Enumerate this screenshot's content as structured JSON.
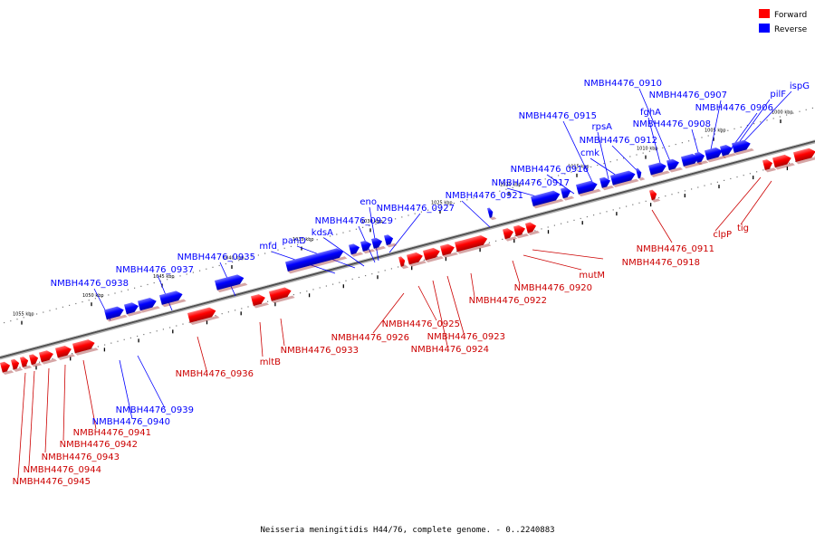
{
  "legend": {
    "forward_label": "Forward",
    "reverse_label": "Reverse",
    "forward_color": "#ff0000",
    "reverse_color": "#0000ff"
  },
  "caption": "Neisseria meningitidis H44/76, complete genome. - 0..2240883",
  "axis": {
    "unit": "kbp",
    "tick_labels": [
      "1000 kbp",
      "1005 kbp",
      "1010 kbp",
      "1015 kbp",
      "1020 kbp",
      "1025 kbp",
      "1030 kbp",
      "1035 kbp",
      "1040 kbp",
      "1045 kbp",
      "1050 kbp",
      "1055 kbp"
    ]
  },
  "reverse_genes": [
    "ispG",
    "pilF",
    "NMBH4476_0906",
    "NMBH4476_0907",
    "NMBH4476_0908",
    "NMBH4476_0910",
    "fghA",
    "NMBH4476_0912",
    "cmk",
    "rpsA",
    "NMBH4476_0915",
    "NMBH4476_0916",
    "NMBH4476_0917",
    "NMBH4476_0921",
    "NMBH4476_0927",
    "eno",
    "NMBH4476_0929",
    "kdsA",
    "panD",
    "mfd",
    "NMBH4476_0935",
    "NMBH4476_0937",
    "NMBH4476_0938",
    "NMBH4476_0939",
    "NMBH4476_0940"
  ],
  "forward_genes": [
    "tig",
    "clpP",
    "NMBH4476_0911",
    "NMBH4476_0918",
    "mutM",
    "NMBH4476_0920",
    "NMBH4476_0922",
    "NMBH4476_0923",
    "NMBH4476_0924",
    "NMBH4476_0925",
    "NMBH4476_0926",
    "NMBH4476_0933",
    "mltB",
    "NMBH4476_0936",
    "NMBH4476_0941",
    "NMBH4476_0942",
    "NMBH4476_0943",
    "NMBH4476_0944",
    "NMBH4476_0945"
  ]
}
